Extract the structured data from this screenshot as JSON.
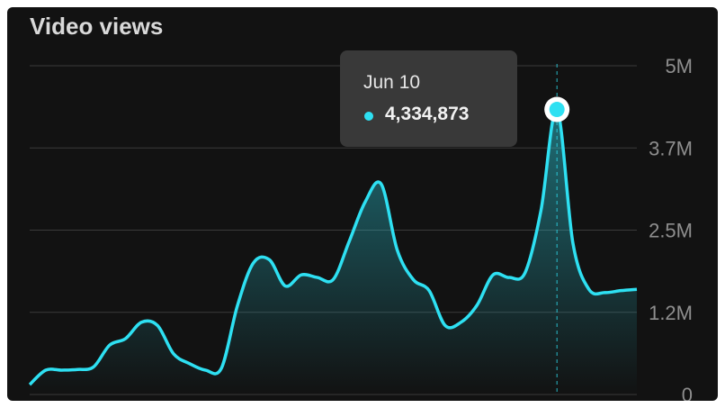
{
  "title": "Video views",
  "colors": {
    "line": "#2ee0f2",
    "background": "#121212",
    "grid": "#3a3a3a"
  },
  "tooltip": {
    "date": "Jun 10",
    "value": "4,334,873"
  },
  "chart_data": {
    "type": "area",
    "title": "Video views",
    "y_tick_labels": [
      "0",
      "1.2M",
      "2.5M",
      "3.7M",
      "5M"
    ],
    "ylim": [
      0,
      5000000
    ],
    "grid": true,
    "y_axis_side": "right",
    "series": [
      {
        "values": [
          150000,
          370000,
          370000,
          380000,
          420000,
          750000,
          850000,
          1100000,
          1050000,
          620000,
          470000,
          370000,
          400000,
          1350000,
          2000000,
          2050000,
          1650000,
          1820000,
          1780000,
          1750000,
          2330000,
          2930000,
          3200000,
          2200000,
          1750000,
          1580000,
          1050000,
          1100000,
          1360000,
          1820000,
          1780000,
          1850000,
          2800000,
          4334873,
          2300000,
          1600000,
          1550000,
          1580000,
          1600000
        ],
        "highlight_index": 33
      }
    ]
  }
}
